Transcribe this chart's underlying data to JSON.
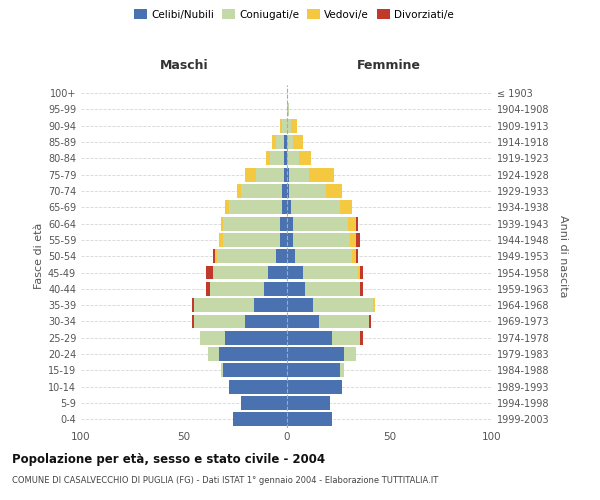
{
  "age_groups": [
    "0-4",
    "5-9",
    "10-14",
    "15-19",
    "20-24",
    "25-29",
    "30-34",
    "35-39",
    "40-44",
    "45-49",
    "50-54",
    "55-59",
    "60-64",
    "65-69",
    "70-74",
    "75-79",
    "80-84",
    "85-89",
    "90-94",
    "95-99",
    "100+"
  ],
  "years": [
    "1999-2003",
    "1994-1998",
    "1989-1993",
    "1984-1988",
    "1979-1983",
    "1974-1978",
    "1969-1973",
    "1964-1968",
    "1959-1963",
    "1954-1958",
    "1949-1953",
    "1944-1948",
    "1939-1943",
    "1934-1938",
    "1929-1933",
    "1924-1928",
    "1919-1923",
    "1914-1918",
    "1909-1913",
    "1904-1908",
    "≤ 1903"
  ],
  "males": {
    "celibi": [
      26,
      22,
      28,
      31,
      33,
      30,
      20,
      16,
      11,
      9,
      5,
      3,
      3,
      2,
      2,
      1,
      1,
      1,
      0,
      0,
      0
    ],
    "coniugati": [
      0,
      0,
      0,
      1,
      5,
      12,
      25,
      29,
      26,
      27,
      29,
      28,
      28,
      26,
      20,
      14,
      7,
      4,
      2,
      0,
      0
    ],
    "vedovi": [
      0,
      0,
      0,
      0,
      0,
      0,
      0,
      0,
      0,
      0,
      1,
      2,
      1,
      2,
      2,
      5,
      2,
      2,
      1,
      0,
      0
    ],
    "divorziati": [
      0,
      0,
      0,
      0,
      0,
      0,
      1,
      1,
      2,
      3,
      1,
      0,
      0,
      0,
      0,
      0,
      0,
      0,
      0,
      0,
      0
    ]
  },
  "females": {
    "nubili": [
      22,
      21,
      27,
      26,
      28,
      22,
      16,
      13,
      9,
      8,
      4,
      3,
      3,
      2,
      1,
      1,
      0,
      0,
      0,
      0,
      0
    ],
    "coniugate": [
      0,
      0,
      0,
      2,
      6,
      14,
      24,
      29,
      27,
      27,
      28,
      28,
      27,
      24,
      18,
      10,
      6,
      3,
      2,
      1,
      0
    ],
    "vedove": [
      0,
      0,
      0,
      0,
      0,
      0,
      0,
      1,
      0,
      1,
      2,
      3,
      4,
      6,
      8,
      12,
      6,
      5,
      3,
      0,
      0
    ],
    "divorziate": [
      0,
      0,
      0,
      0,
      0,
      1,
      1,
      0,
      1,
      1,
      1,
      2,
      1,
      0,
      0,
      0,
      0,
      0,
      0,
      0,
      0
    ]
  },
  "colors": {
    "celibi": "#4a72b0",
    "coniugati": "#c5d9a8",
    "vedovi": "#f5c842",
    "divorziati": "#c0392b"
  },
  "xlim": 100,
  "title": "Popolazione per età, sesso e stato civile - 2004",
  "subtitle": "COMUNE DI CASALVECCHIO DI PUGLIA (FG) - Dati ISTAT 1° gennaio 2004 - Elaborazione TUTTITALIA.IT",
  "xlabel_left": "Maschi",
  "xlabel_right": "Femmine",
  "ylabel": "Fasce di età",
  "ylabel_right": "Anni di nascita",
  "background_color": "#ffffff",
  "grid_color": "#cccccc"
}
